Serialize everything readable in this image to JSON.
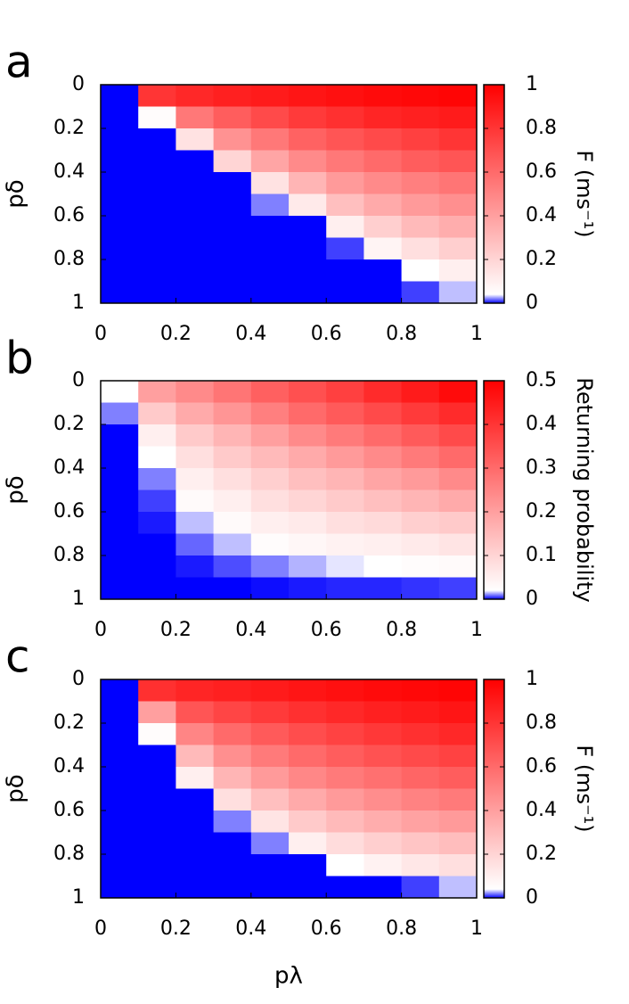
{
  "chart_data": [
    {
      "type": "heatmap",
      "panel_label": "a",
      "ylabel": "pδ",
      "colorbar_label": "F (ms⁻¹)",
      "x": [
        0.05,
        0.15,
        0.25,
        0.35,
        0.45,
        0.55,
        0.65,
        0.75,
        0.85,
        0.95
      ],
      "y": [
        0.05,
        0.15,
        0.25,
        0.35,
        0.45,
        0.55,
        0.65,
        0.75,
        0.85,
        0.95
      ],
      "z": [
        [
          0,
          0.8,
          0.85,
          0.88,
          0.9,
          0.92,
          0.94,
          0.96,
          0.97,
          0.98
        ],
        [
          0,
          0.05,
          0.55,
          0.65,
          0.72,
          0.78,
          0.82,
          0.86,
          0.88,
          0.9
        ],
        [
          0,
          0,
          0.15,
          0.45,
          0.55,
          0.63,
          0.68,
          0.72,
          0.76,
          0.8
        ],
        [
          0,
          0,
          0,
          0.2,
          0.38,
          0.48,
          0.55,
          0.6,
          0.65,
          0.68
        ],
        [
          0,
          0,
          0,
          0,
          0.15,
          0.32,
          0.42,
          0.48,
          0.52,
          0.56
        ],
        [
          0,
          0,
          0,
          0,
          0.02,
          0.12,
          0.28,
          0.36,
          0.42,
          0.46
        ],
        [
          0,
          0,
          0,
          0,
          0,
          0,
          0.1,
          0.22,
          0.3,
          0.35
        ],
        [
          0,
          0,
          0,
          0,
          0,
          0,
          0.01,
          0.08,
          0.16,
          0.22
        ],
        [
          0,
          0,
          0,
          0,
          0,
          0,
          0,
          0,
          0.04,
          0.1
        ],
        [
          0,
          0,
          0,
          0,
          0,
          0,
          0,
          0,
          0.01,
          0.03
        ]
      ],
      "xlim": [
        0,
        1
      ],
      "ylim": [
        0,
        1
      ],
      "y_inverted": true,
      "xticks": [
        0,
        0.2,
        0.4,
        0.6,
        0.8,
        1
      ],
      "yticks": [
        0,
        0.2,
        0.4,
        0.6,
        0.8,
        1
      ],
      "zlim": [
        0,
        1
      ],
      "zticks": [
        0,
        0.2,
        0.4,
        0.6,
        0.8,
        1
      ],
      "colors": [
        "#0000ff",
        "#ffffff",
        "#ff0000"
      ]
    },
    {
      "type": "heatmap",
      "panel_label": "b",
      "ylabel": "pδ",
      "colorbar_label": "Returning probability",
      "x": [
        0.05,
        0.15,
        0.25,
        0.35,
        0.45,
        0.55,
        0.65,
        0.75,
        0.85,
        0.95
      ],
      "y": [
        0.05,
        0.15,
        0.25,
        0.35,
        0.45,
        0.55,
        0.65,
        0.75,
        0.85,
        0.95
      ],
      "z": [
        [
          0.02,
          0.2,
          0.24,
          0.28,
          0.32,
          0.35,
          0.38,
          0.42,
          0.45,
          0.48
        ],
        [
          0.01,
          0.12,
          0.18,
          0.22,
          0.26,
          0.3,
          0.33,
          0.36,
          0.39,
          0.42
        ],
        [
          0,
          0.05,
          0.12,
          0.16,
          0.2,
          0.24,
          0.27,
          0.3,
          0.33,
          0.36
        ],
        [
          0,
          0.02,
          0.08,
          0.12,
          0.15,
          0.18,
          0.21,
          0.24,
          0.27,
          0.3
        ],
        [
          0,
          0.01,
          0.05,
          0.08,
          0.11,
          0.14,
          0.16,
          0.19,
          0.21,
          0.24
        ],
        [
          0,
          0.005,
          0.03,
          0.05,
          0.08,
          0.1,
          0.12,
          0.14,
          0.16,
          0.18
        ],
        [
          0,
          0.002,
          0.015,
          0.03,
          0.05,
          0.06,
          0.08,
          0.09,
          0.11,
          0.12
        ],
        [
          0,
          0,
          0.008,
          0.015,
          0.025,
          0.035,
          0.045,
          0.05,
          0.06,
          0.07
        ],
        [
          0,
          0,
          0.002,
          0.006,
          0.01,
          0.014,
          0.018,
          0.02,
          0.025,
          0.03
        ],
        [
          0,
          0,
          0,
          0,
          0.001,
          0.002,
          0.003,
          0.003,
          0.004,
          0.005
        ]
      ],
      "xlim": [
        0,
        1
      ],
      "ylim": [
        0,
        1
      ],
      "y_inverted": true,
      "xticks": [
        0,
        0.2,
        0.4,
        0.6,
        0.8,
        1
      ],
      "yticks": [
        0,
        0.2,
        0.4,
        0.6,
        0.8,
        1
      ],
      "zlim": [
        0,
        0.5
      ],
      "zticks": [
        0,
        0.1,
        0.2,
        0.3,
        0.4,
        0.5
      ],
      "colors": [
        "#0000ff",
        "#ffffff",
        "#ff0000"
      ]
    },
    {
      "type": "heatmap",
      "panel_label": "c",
      "ylabel": "pδ",
      "xlabel": "pλ",
      "colorbar_label": "F (ms⁻¹)",
      "x": [
        0.05,
        0.15,
        0.25,
        0.35,
        0.45,
        0.55,
        0.65,
        0.75,
        0.85,
        0.95
      ],
      "y": [
        0.05,
        0.15,
        0.25,
        0.35,
        0.45,
        0.55,
        0.65,
        0.75,
        0.85,
        0.95
      ],
      "z": [
        [
          0,
          0.82,
          0.86,
          0.88,
          0.9,
          0.92,
          0.94,
          0.96,
          0.97,
          0.98
        ],
        [
          0,
          0.4,
          0.68,
          0.74,
          0.78,
          0.82,
          0.85,
          0.88,
          0.9,
          0.92
        ],
        [
          0,
          0.05,
          0.5,
          0.6,
          0.66,
          0.71,
          0.75,
          0.79,
          0.82,
          0.85
        ],
        [
          0,
          0,
          0.3,
          0.46,
          0.54,
          0.6,
          0.65,
          0.69,
          0.72,
          0.75
        ],
        [
          0,
          0,
          0.1,
          0.32,
          0.42,
          0.49,
          0.54,
          0.58,
          0.62,
          0.65
        ],
        [
          0,
          0,
          0,
          0.16,
          0.28,
          0.36,
          0.42,
          0.47,
          0.51,
          0.54
        ],
        [
          0,
          0,
          0,
          0.02,
          0.14,
          0.24,
          0.3,
          0.35,
          0.39,
          0.42
        ],
        [
          0,
          0,
          0,
          0,
          0.02,
          0.1,
          0.17,
          0.22,
          0.26,
          0.29
        ],
        [
          0,
          0,
          0,
          0,
          0,
          0,
          0.04,
          0.09,
          0.13,
          0.16
        ],
        [
          0,
          0,
          0,
          0,
          0,
          0,
          0,
          0,
          0.01,
          0.03
        ]
      ],
      "xlim": [
        0,
        1
      ],
      "ylim": [
        0,
        1
      ],
      "y_inverted": true,
      "xticks": [
        0,
        0.2,
        0.4,
        0.6,
        0.8,
        1
      ],
      "yticks": [
        0,
        0.2,
        0.4,
        0.6,
        0.8,
        1
      ],
      "zlim": [
        0,
        1
      ],
      "zticks": [
        0,
        0.2,
        0.4,
        0.6,
        0.8,
        1
      ],
      "colors": [
        "#0000ff",
        "#ffffff",
        "#ff0000"
      ]
    }
  ]
}
